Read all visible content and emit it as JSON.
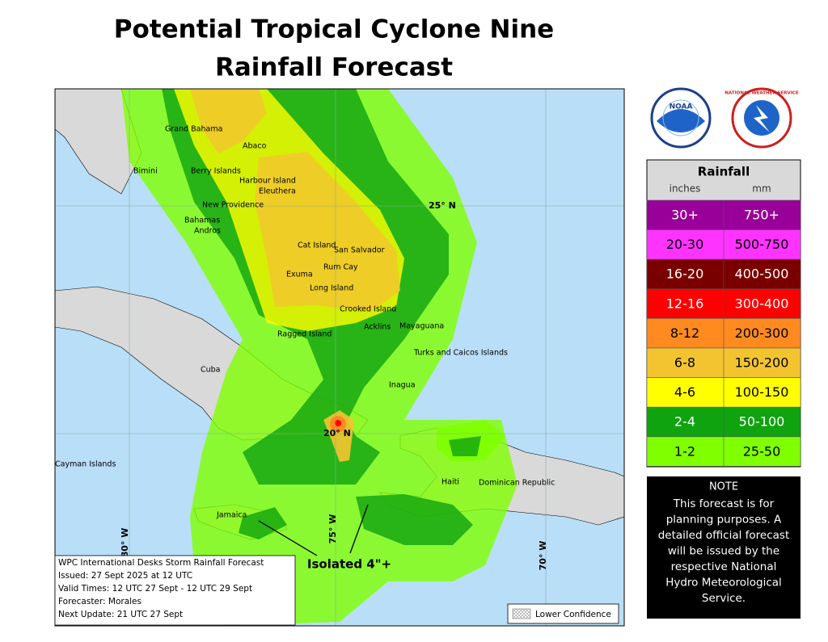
{
  "header": {
    "title": [
      "Potential Tropical Cyclone Nine",
      "Rainfall Forecast"
    ]
  },
  "map": {
    "places": [
      "Grand Bahama",
      "Abaco",
      "Bimini",
      "Berry Islands",
      "Harbour Island",
      "Eleuthera",
      "New Providence",
      "Bahamas",
      "Andros",
      "Cat Island",
      "San Salvador",
      "Rum Cay",
      "Exuma",
      "Long Island",
      "Crooked Island",
      "Acklins",
      "Mayaguana",
      "Ragged Island",
      "Turks and Caicos Islands",
      "Cuba",
      "Inagua",
      "Cayman Islands",
      "Haiti",
      "Dominican Republic",
      "Jamaica"
    ],
    "gridlines": [
      "25° N",
      "20° N",
      "80° W",
      "75° W",
      "70° W"
    ],
    "annotation": "Isolated 4\"+",
    "info_box": [
      "WPC International Desks Storm Rainfall Forecast",
      "Issued: 27 Sept 2025 at 12 UTC",
      "Valid Times: 12 UTC 27 Sept - 12 UTC 29 Sept",
      "Forecaster: Morales",
      "Next Update: 21 UTC 27 Sept"
    ],
    "lower_confidence": "Lower Confidence"
  },
  "logos": {
    "noaa": "NOAA",
    "nws": "NATIONAL WEATHER SERVICE"
  },
  "legend": {
    "title": "Rainfall",
    "units": [
      "inches",
      "mm"
    ],
    "rows": [
      {
        "inches": "30+",
        "mm": "750+",
        "color": "#990099"
      },
      {
        "inches": "20-30",
        "mm": "500-750",
        "color": "#ff33ff"
      },
      {
        "inches": "16-20",
        "mm": "400-500",
        "color": "#7a0000"
      },
      {
        "inches": "12-16",
        "mm": "300-400",
        "color": "#ff0000"
      },
      {
        "inches": "8-12",
        "mm": "200-300",
        "color": "#ff8a1f"
      },
      {
        "inches": "6-8",
        "mm": "150-200",
        "color": "#f4c430"
      },
      {
        "inches": "4-6",
        "mm": "100-150",
        "color": "#ffff00"
      },
      {
        "inches": "2-4",
        "mm": "50-100",
        "color": "#0fa30f"
      },
      {
        "inches": "1-2",
        "mm": "25-50",
        "color": "#80ff00"
      }
    ]
  },
  "note": {
    "title": "NOTE",
    "lines": [
      "This forecast is for",
      "planning purposes. A",
      "detailed official forecast",
      "will be issued by the",
      "respective National",
      "Hydro Meteorological",
      "Service."
    ]
  }
}
